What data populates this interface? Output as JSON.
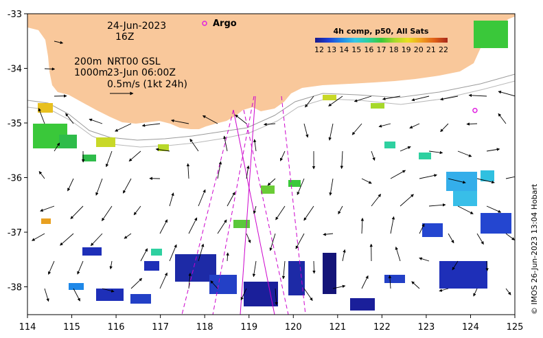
{
  "map": {
    "date_label": "24-Jun-2023",
    "hour_label": "16Z",
    "argo_label": "Argo",
    "isobath_200": "200m",
    "isobath_1000": "1000m",
    "product_label": "NRT00 GSL",
    "product_time": "23-Jun 06:00Z",
    "scale_label": "0.5m/s (1kt 24h)",
    "colorbar_title": "4h comp, p50, All Sats",
    "colorbar_ticks": [
      "12",
      "13",
      "14",
      "15",
      "16",
      "17",
      "18",
      "19",
      "20",
      "21",
      "22"
    ],
    "x_ticks": [
      "114",
      "115",
      "116",
      "117",
      "118",
      "119",
      "120",
      "121",
      "122",
      "123",
      "124",
      "125"
    ],
    "y_ticks": [
      "-33",
      "-34",
      "-35",
      "-36",
      "-37",
      "-38"
    ],
    "credit": "© IMOS 26-Jun-2023 13:04 Hobart",
    "land_color": "#f9c89b",
    "argo_color": "#e020e0",
    "track_color": "#cc00cc"
  },
  "chart_data": {
    "type": "map",
    "title": "4h comp, p50, All Sats",
    "lon_range": [
      114,
      125
    ],
    "lat_range": [
      -38.5,
      -33
    ],
    "colorbar_range": [
      12,
      22
    ],
    "argo_floats": [
      {
        "lon": 118.95,
        "lat": -33.18
      },
      {
        "lon": 124.1,
        "lat": -34.77
      }
    ]
  }
}
